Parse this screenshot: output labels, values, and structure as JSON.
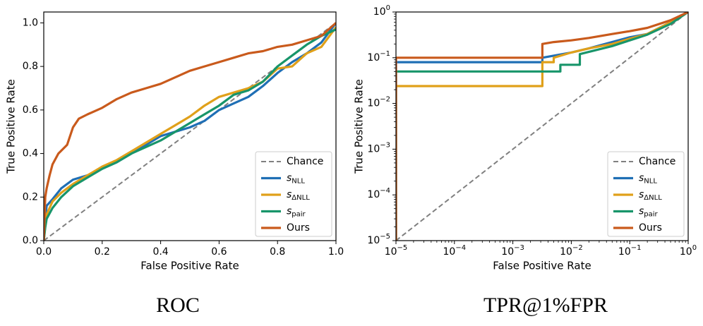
{
  "chart_data": [
    {
      "type": "line",
      "caption": "ROC",
      "xlabel": "False Positive Rate",
      "ylabel": "True Positive Rate",
      "xscale": "linear",
      "yscale": "linear",
      "xlim": [
        0,
        1
      ],
      "ylim": [
        0,
        1.05
      ],
      "xticks": [
        0,
        0.2,
        0.4,
        0.6,
        0.8,
        1.0
      ],
      "xtick_labels": [
        "0.0",
        "0.2",
        "0.4",
        "0.6",
        "0.8",
        "1.0"
      ],
      "yticks": [
        0,
        0.2,
        0.4,
        0.6,
        0.8,
        1.0
      ],
      "ytick_labels": [
        "0.0",
        "0.2",
        "0.4",
        "0.6",
        "0.8",
        "1.0"
      ],
      "legend_position": "lower-right",
      "series": [
        {
          "name": "Chance",
          "sub": "",
          "color": "#808080",
          "dashed": true,
          "x": [
            0,
            1
          ],
          "y": [
            0,
            1
          ]
        },
        {
          "name": "s",
          "sub": "NLL",
          "color": "#1f6fb5",
          "dashed": false,
          "x": [
            0,
            0.005,
            0.01,
            0.03,
            0.06,
            0.1,
            0.15,
            0.2,
            0.25,
            0.3,
            0.35,
            0.4,
            0.45,
            0.5,
            0.55,
            0.6,
            0.65,
            0.7,
            0.75,
            0.8,
            0.85,
            0.9,
            0.95,
            1.0
          ],
          "y": [
            0,
            0.1,
            0.16,
            0.19,
            0.24,
            0.28,
            0.3,
            0.33,
            0.36,
            0.4,
            0.44,
            0.48,
            0.5,
            0.52,
            0.55,
            0.6,
            0.63,
            0.66,
            0.71,
            0.77,
            0.82,
            0.86,
            0.91,
            1.0
          ]
        },
        {
          "name": "s",
          "sub": "ΔNLL",
          "color": "#e0a01a",
          "dashed": false,
          "x": [
            0,
            0.005,
            0.01,
            0.03,
            0.06,
            0.1,
            0.15,
            0.2,
            0.25,
            0.3,
            0.35,
            0.4,
            0.45,
            0.5,
            0.55,
            0.6,
            0.65,
            0.7,
            0.75,
            0.8,
            0.85,
            0.9,
            0.95,
            1.0
          ],
          "y": [
            0,
            0.07,
            0.12,
            0.18,
            0.22,
            0.26,
            0.3,
            0.34,
            0.37,
            0.41,
            0.45,
            0.49,
            0.53,
            0.57,
            0.62,
            0.66,
            0.68,
            0.7,
            0.73,
            0.79,
            0.8,
            0.86,
            0.89,
            0.98
          ]
        },
        {
          "name": "s",
          "sub": "pair",
          "color": "#18956a",
          "dashed": false,
          "x": [
            0,
            0.005,
            0.01,
            0.03,
            0.06,
            0.1,
            0.15,
            0.2,
            0.25,
            0.3,
            0.35,
            0.4,
            0.45,
            0.5,
            0.55,
            0.6,
            0.65,
            0.7,
            0.75,
            0.8,
            0.85,
            0.9,
            0.95,
            1.0
          ],
          "y": [
            0,
            0.06,
            0.1,
            0.15,
            0.2,
            0.25,
            0.29,
            0.33,
            0.36,
            0.4,
            0.43,
            0.46,
            0.5,
            0.54,
            0.58,
            0.62,
            0.67,
            0.69,
            0.73,
            0.8,
            0.85,
            0.9,
            0.94,
            0.97
          ]
        },
        {
          "name": "Ours",
          "sub": "",
          "color": "#c95a1c",
          "dashed": false,
          "x": [
            0,
            0.005,
            0.01,
            0.02,
            0.03,
            0.05,
            0.08,
            0.1,
            0.12,
            0.15,
            0.2,
            0.25,
            0.3,
            0.35,
            0.4,
            0.45,
            0.5,
            0.55,
            0.6,
            0.65,
            0.7,
            0.75,
            0.8,
            0.85,
            0.9,
            0.95,
            1.0
          ],
          "y": [
            0,
            0.2,
            0.24,
            0.3,
            0.35,
            0.4,
            0.44,
            0.52,
            0.56,
            0.58,
            0.61,
            0.65,
            0.68,
            0.7,
            0.72,
            0.75,
            0.78,
            0.8,
            0.82,
            0.84,
            0.86,
            0.87,
            0.89,
            0.9,
            0.92,
            0.94,
            1.0
          ]
        }
      ]
    },
    {
      "type": "line",
      "caption": "TPR@1%FPR",
      "xlabel": "False Positive Rate",
      "ylabel": "True Positive Rate",
      "xscale": "log",
      "yscale": "log",
      "xlim": [
        1e-05,
        1
      ],
      "ylim": [
        1e-05,
        1
      ],
      "xticks": [
        1e-05,
        0.0001,
        0.001,
        0.01,
        0.1,
        1
      ],
      "xtick_labels": [
        "10^-5",
        "10^-4",
        "10^-3",
        "10^-2",
        "10^-1",
        "10^0"
      ],
      "yticks": [
        1e-05,
        0.0001,
        0.001,
        0.01,
        0.1,
        1
      ],
      "ytick_labels": [
        "10^-5",
        "10^-4",
        "10^-3",
        "10^-2",
        "10^-1",
        "10^0"
      ],
      "legend_position": "lower-right",
      "series": [
        {
          "name": "Chance",
          "sub": "",
          "color": "#808080",
          "dashed": true,
          "x": [
            1e-05,
            1
          ],
          "y": [
            1e-05,
            1
          ]
        },
        {
          "name": "s",
          "sub": "NLL",
          "color": "#1f6fb5",
          "dashed": false,
          "x": [
            1e-05,
            1e-05,
            0.0032,
            0.0032,
            0.01,
            0.02,
            0.05,
            0.1,
            0.2,
            0.5,
            1
          ],
          "y": [
            1e-05,
            0.08,
            0.08,
            0.1,
            0.13,
            0.16,
            0.22,
            0.28,
            0.33,
            0.6,
            1
          ]
        },
        {
          "name": "s",
          "sub": "ΔNLL",
          "color": "#e0a01a",
          "dashed": false,
          "x": [
            1e-05,
            1e-05,
            0.0032,
            0.0032,
            0.005,
            0.005,
            0.01,
            0.02,
            0.05,
            0.1,
            0.2,
            0.5,
            1
          ],
          "y": [
            1e-05,
            0.024,
            0.024,
            0.08,
            0.08,
            0.1,
            0.13,
            0.16,
            0.2,
            0.26,
            0.33,
            0.6,
            1
          ]
        },
        {
          "name": "s",
          "sub": "pair",
          "color": "#18956a",
          "dashed": false,
          "x": [
            1e-05,
            1e-05,
            0.0065,
            0.0065,
            0.014,
            0.014,
            0.05,
            0.1,
            0.2,
            0.5,
            1
          ],
          "y": [
            1e-05,
            0.05,
            0.05,
            0.07,
            0.07,
            0.12,
            0.18,
            0.24,
            0.32,
            0.55,
            1
          ]
        },
        {
          "name": "Ours",
          "sub": "",
          "color": "#c95a1c",
          "dashed": false,
          "x": [
            1e-05,
            1e-05,
            0.0032,
            0.0032,
            0.005,
            0.01,
            0.02,
            0.05,
            0.1,
            0.2,
            0.5,
            1
          ],
          "y": [
            1e-05,
            0.1,
            0.1,
            0.2,
            0.22,
            0.24,
            0.27,
            0.33,
            0.38,
            0.45,
            0.66,
            1
          ]
        }
      ]
    }
  ]
}
